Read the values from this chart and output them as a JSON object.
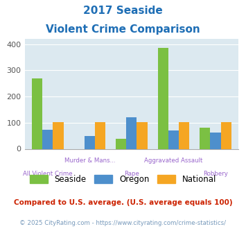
{
  "title_line1": "2017 Seaside",
  "title_line2": "Violent Crime Comparison",
  "categories": [
    "All Violent Crime",
    "Murder & Mans...",
    "Rape",
    "Aggravated Assault",
    "Robbery"
  ],
  "cat_labels_top": [
    "",
    "Murder & Mans...",
    "",
    "Aggravated Assault",
    ""
  ],
  "cat_labels_bot": [
    "All Violent Crime",
    "",
    "Rape",
    "",
    "Robbery"
  ],
  "seaside": [
    268,
    0,
    38,
    387,
    80
  ],
  "oregon": [
    73,
    49,
    120,
    70,
    62
  ],
  "national": [
    103,
    103,
    103,
    103,
    103
  ],
  "seaside_color": "#7bc043",
  "oregon_color": "#4d8fcc",
  "national_color": "#f5a623",
  "title_color": "#1e6eb5",
  "ylim": [
    0,
    420
  ],
  "yticks": [
    0,
    100,
    200,
    300,
    400
  ],
  "bg_color": "#dce9f0",
  "label_color": "#9966cc",
  "footnote1": "Compared to U.S. average. (U.S. average equals 100)",
  "footnote2": "© 2025 CityRating.com - https://www.cityrating.com/crime-statistics/",
  "footnote1_color": "#cc2200",
  "footnote2_color": "#7799bb"
}
